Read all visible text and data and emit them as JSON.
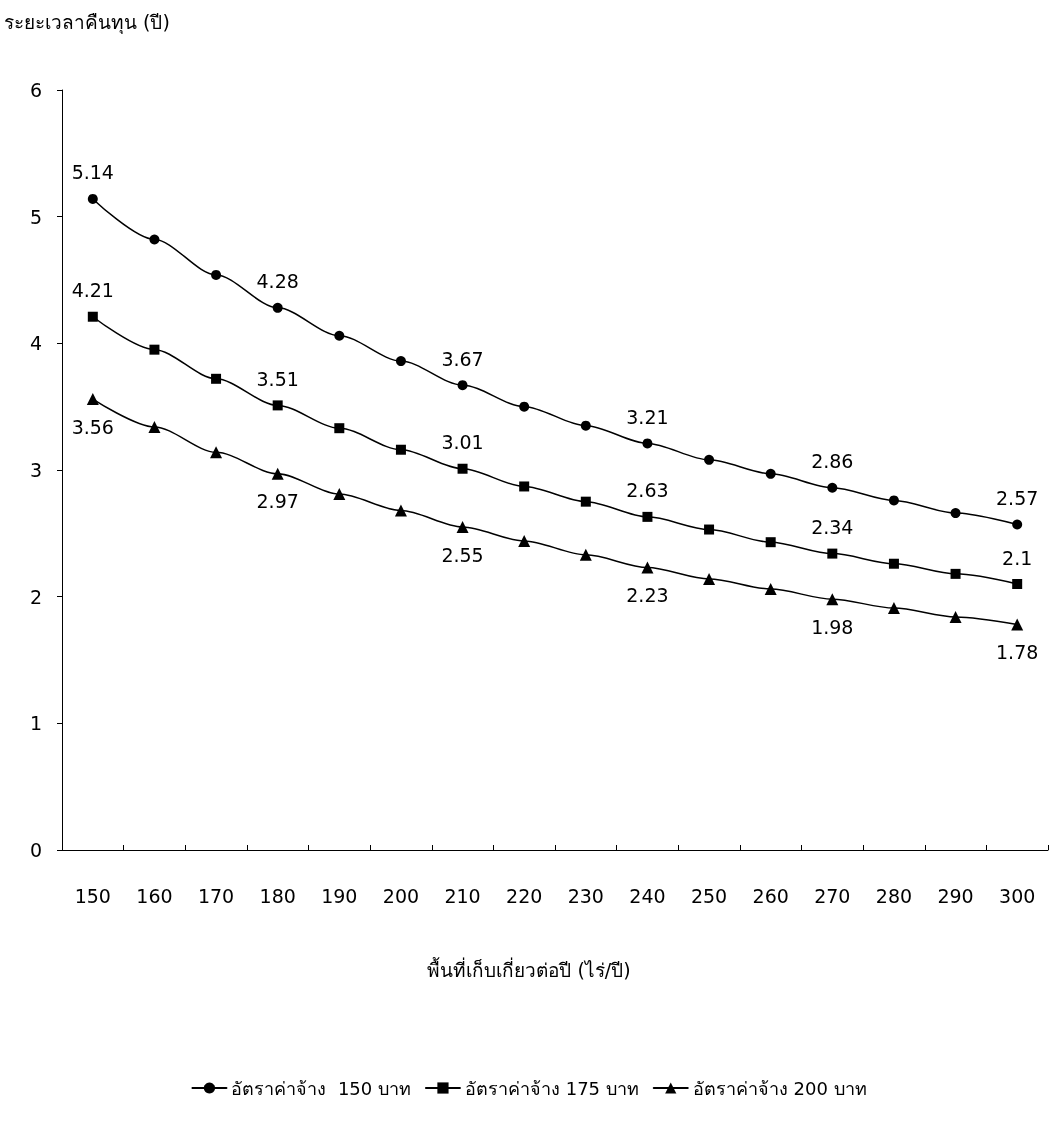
{
  "chart_data": {
    "type": "line",
    "ylabel": "ระยะเวลาคืนทุน (ปี)",
    "xlabel": "พื้นที่เก็บเกี่ยวต่อปี (ไร่/ปี)",
    "categories": [
      "150",
      "160",
      "170",
      "180",
      "190",
      "200",
      "210",
      "220",
      "230",
      "240",
      "250",
      "260",
      "270",
      "280",
      "290",
      "300"
    ],
    "ylim": [
      0,
      6
    ],
    "yticks": [
      0,
      1,
      2,
      3,
      4,
      5,
      6
    ],
    "grid": false,
    "legend": "bottom",
    "line_style": "solid",
    "series": [
      {
        "name": "อัตราค่าจ้าง  150 บาท",
        "color": "#000000",
        "marker": "circle",
        "values": [
          5.14,
          4.82,
          4.54,
          4.28,
          4.06,
          3.86,
          3.67,
          3.5,
          3.35,
          3.21,
          3.08,
          2.97,
          2.86,
          2.76,
          2.66,
          2.57
        ],
        "value_labels": [
          "5.14",
          null,
          null,
          "4.28",
          null,
          null,
          "3.67",
          null,
          null,
          "3.21",
          null,
          null,
          "2.86",
          null,
          null,
          "2.57"
        ]
      },
      {
        "name": "อัตราค่าจ้าง 175 บาท",
        "color": "#000000",
        "marker": "square",
        "values": [
          4.21,
          3.95,
          3.72,
          3.51,
          3.33,
          3.16,
          3.01,
          2.87,
          2.75,
          2.63,
          2.53,
          2.43,
          2.34,
          2.26,
          2.18,
          2.1
        ],
        "value_labels": [
          "4.21",
          null,
          null,
          "3.51",
          null,
          null,
          "3.01",
          null,
          null,
          "2.63",
          null,
          null,
          "2.34",
          null,
          null,
          "2.1"
        ]
      },
      {
        "name": "อัตราค่าจ้าง 200 บาท",
        "color": "#000000",
        "marker": "triangle",
        "values": [
          3.56,
          3.34,
          3.14,
          2.97,
          2.81,
          2.68,
          2.55,
          2.44,
          2.33,
          2.23,
          2.14,
          2.06,
          1.98,
          1.91,
          1.84,
          1.78
        ],
        "value_labels": [
          "3.56",
          null,
          null,
          "2.97",
          null,
          null,
          "2.55",
          null,
          null,
          "2.23",
          null,
          null,
          "1.98",
          null,
          null,
          "1.78"
        ]
      }
    ]
  }
}
